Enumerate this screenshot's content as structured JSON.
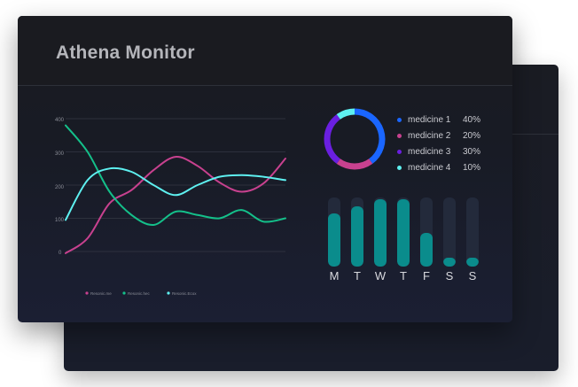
{
  "app": {
    "title": "Athena Monitor"
  },
  "colors": {
    "pink": "#c8418f",
    "green": "#14c08a",
    "cyan": "#5ef0f0",
    "blue": "#1a66ff",
    "violet": "#6a1fe0",
    "teal": "#0a8c8c",
    "bar_track": "#232a3b"
  },
  "line_chart": {
    "y_ticks": [
      "400",
      "300",
      "200",
      "100",
      "0"
    ],
    "legend": [
      {
        "label": "Resonic.me",
        "color": "#c8418f"
      },
      {
        "label": "Resonic.hec",
        "color": "#14c08a"
      },
      {
        "label": "Resonic.Ecox",
        "color": "#5ef0f0"
      }
    ]
  },
  "donut": {
    "items": [
      {
        "name": "medicine 1",
        "percent": "40%",
        "color": "#1a66ff"
      },
      {
        "name": "medicine 2",
        "percent": "20%",
        "color": "#c8418f"
      },
      {
        "name": "medicine 3",
        "percent": "30%",
        "color": "#6a1fe0"
      },
      {
        "name": "medicine 4",
        "percent": "10%",
        "color": "#5ef0f0"
      }
    ]
  },
  "chart_data": [
    {
      "type": "line",
      "title": "",
      "xlabel": "",
      "ylabel": "",
      "x": [
        0,
        1,
        2,
        3,
        4,
        5,
        6,
        7,
        8,
        9,
        10
      ],
      "ylim": [
        0,
        400
      ],
      "y_ticks": [
        0,
        100,
        200,
        300,
        400
      ],
      "series": [
        {
          "name": "Resonic.me",
          "color": "#c8418f",
          "values": [
            -5,
            40,
            145,
            185,
            245,
            285,
            258,
            208,
            180,
            205,
            280
          ]
        },
        {
          "name": "Resonic.hec",
          "color": "#14c08a",
          "values": [
            380,
            300,
            180,
            110,
            80,
            120,
            110,
            100,
            125,
            90,
            100
          ]
        },
        {
          "name": "Resonic.Ecox",
          "color": "#5ef0f0",
          "values": [
            95,
            215,
            250,
            240,
            200,
            170,
            200,
            225,
            230,
            225,
            215
          ]
        }
      ]
    },
    {
      "type": "pie",
      "title": "",
      "categories": [
        "medicine 1",
        "medicine 2",
        "medicine 3",
        "medicine 4"
      ],
      "values": [
        40,
        20,
        30,
        10
      ]
    },
    {
      "type": "bar",
      "title": "",
      "categories": [
        "M",
        "T",
        "W",
        "T",
        "F",
        "S",
        "S"
      ],
      "values": [
        0.77,
        0.87,
        0.97,
        0.97,
        0.49,
        0.13,
        0.13
      ],
      "ylim": [
        0,
        1
      ]
    }
  ]
}
